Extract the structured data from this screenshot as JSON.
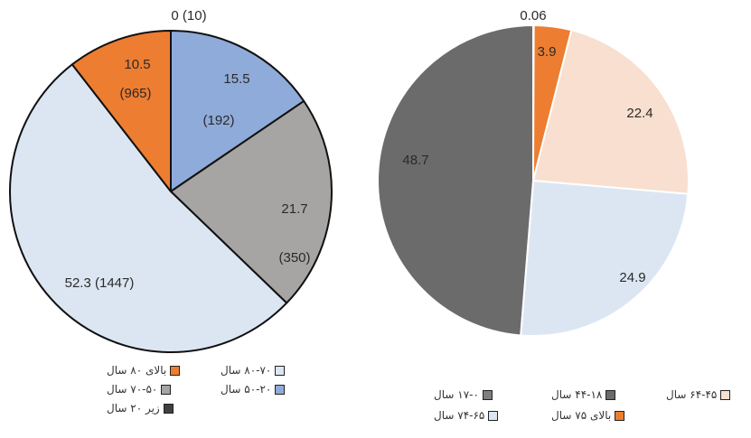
{
  "chart_data": [
    {
      "type": "pie",
      "slices": [
        {
          "label": "زیر ۲۰ سال",
          "value": 0,
          "text": "0 (10)",
          "color": "#404040"
        },
        {
          "label": "۵۰-۲۰ سال",
          "value": 15.5,
          "text": "15.5",
          "subtext": "(192)",
          "color": "#8fabd9"
        },
        {
          "label": "۷۰-۵۰ سال",
          "value": 21.7,
          "text": "21.7",
          "subtext": "(350)",
          "color": "#a7a5a3"
        },
        {
          "label": "۸۰-۷۰ سال",
          "value": 52.3,
          "text": "52.3 (1447)",
          "color": "#dce6f3"
        },
        {
          "label": "بالای ۸۰ سال",
          "value": 10.5,
          "text": "10.5",
          "subtext": "(965)",
          "color": "#ed7d31"
        }
      ],
      "legend": [
        {
          "label": "بالای ۸۰ سال",
          "color": "#ed7d31"
        },
        {
          "label": "۸۰-۷۰ سال",
          "color": "#dce6f3"
        },
        {
          "label": "۷۰-۵۰ سال",
          "color": "#a7a5a3"
        },
        {
          "label": "۵۰-۲۰ سال",
          "color": "#8fabd9"
        },
        {
          "label": "زیر ۲۰ سال",
          "color": "#404040"
        }
      ]
    },
    {
      "type": "pie",
      "slices": [
        {
          "label": "۱۷-۰ سال",
          "value": 0.06,
          "text": "0.06",
          "color": "#7f7f7f"
        },
        {
          "label": "بالای ۷۵ سال",
          "value": 3.9,
          "text": "3.9",
          "color": "#ed7d31"
        },
        {
          "label": "۶۴-۴۵ سال",
          "value": 22.4,
          "text": "22.4",
          "color": "#f8dfcf"
        },
        {
          "label": "۷۴-۶۵ سال",
          "value": 24.9,
          "text": "24.9",
          "color": "#dce6f3"
        },
        {
          "label": "۴۴-۱۸ سال",
          "value": 48.7,
          "text": "48.7",
          "color": "#6b6b6b"
        }
      ],
      "legend": [
        {
          "label": "۱۷-۰ سال",
          "color": "#7f7f7f"
        },
        {
          "label": "۴۴-۱۸ سال",
          "color": "#6b6b6b"
        },
        {
          "label": "۶۴-۴۵ سال",
          "color": "#f8dfcf"
        },
        {
          "label": "۷۴-۶۵ سال",
          "color": "#dce6f3"
        },
        {
          "label": "بالای ۷۵ سال",
          "color": "#ed7d31"
        }
      ]
    }
  ]
}
